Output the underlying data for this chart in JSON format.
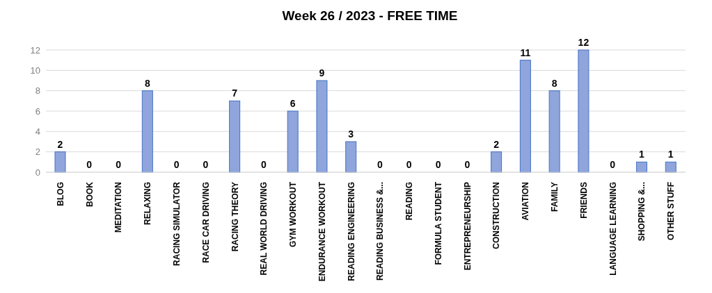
{
  "chart_data": {
    "type": "bar",
    "title": "Week 26 / 2023 - FREE TIME",
    "categories": [
      "BLOG",
      "BOOK",
      "MEDITATION",
      "RELAXING",
      "RACING SIMULATOR",
      "RACE CAR DRIVING",
      "RACING THEORY",
      "REAL WORLD DRIVING",
      "GYM WORKOUT",
      "ENDURANCE WORKOUT",
      "READING ENGINEERING",
      "READING BUSINESS &...",
      "READING",
      "FORMULA STUDENT",
      "ENTREPRENEURSHIP",
      "CONSTRUCTION",
      "AVIATION",
      "FAMILY",
      "FRIENDS",
      "LANGUAGE LEARNING",
      "SHOPPING &...",
      "OTHER STUFF"
    ],
    "values": [
      2,
      0,
      0,
      8,
      0,
      0,
      7,
      0,
      6,
      9,
      3,
      0,
      0,
      0,
      0,
      2,
      11,
      8,
      12,
      0,
      1,
      1
    ],
    "color": "#8fa5dc",
    "ylim": [
      0,
      12
    ],
    "yticks": [
      0,
      2,
      4,
      6,
      8,
      10,
      12
    ],
    "grid": "y",
    "data_labels": true
  }
}
